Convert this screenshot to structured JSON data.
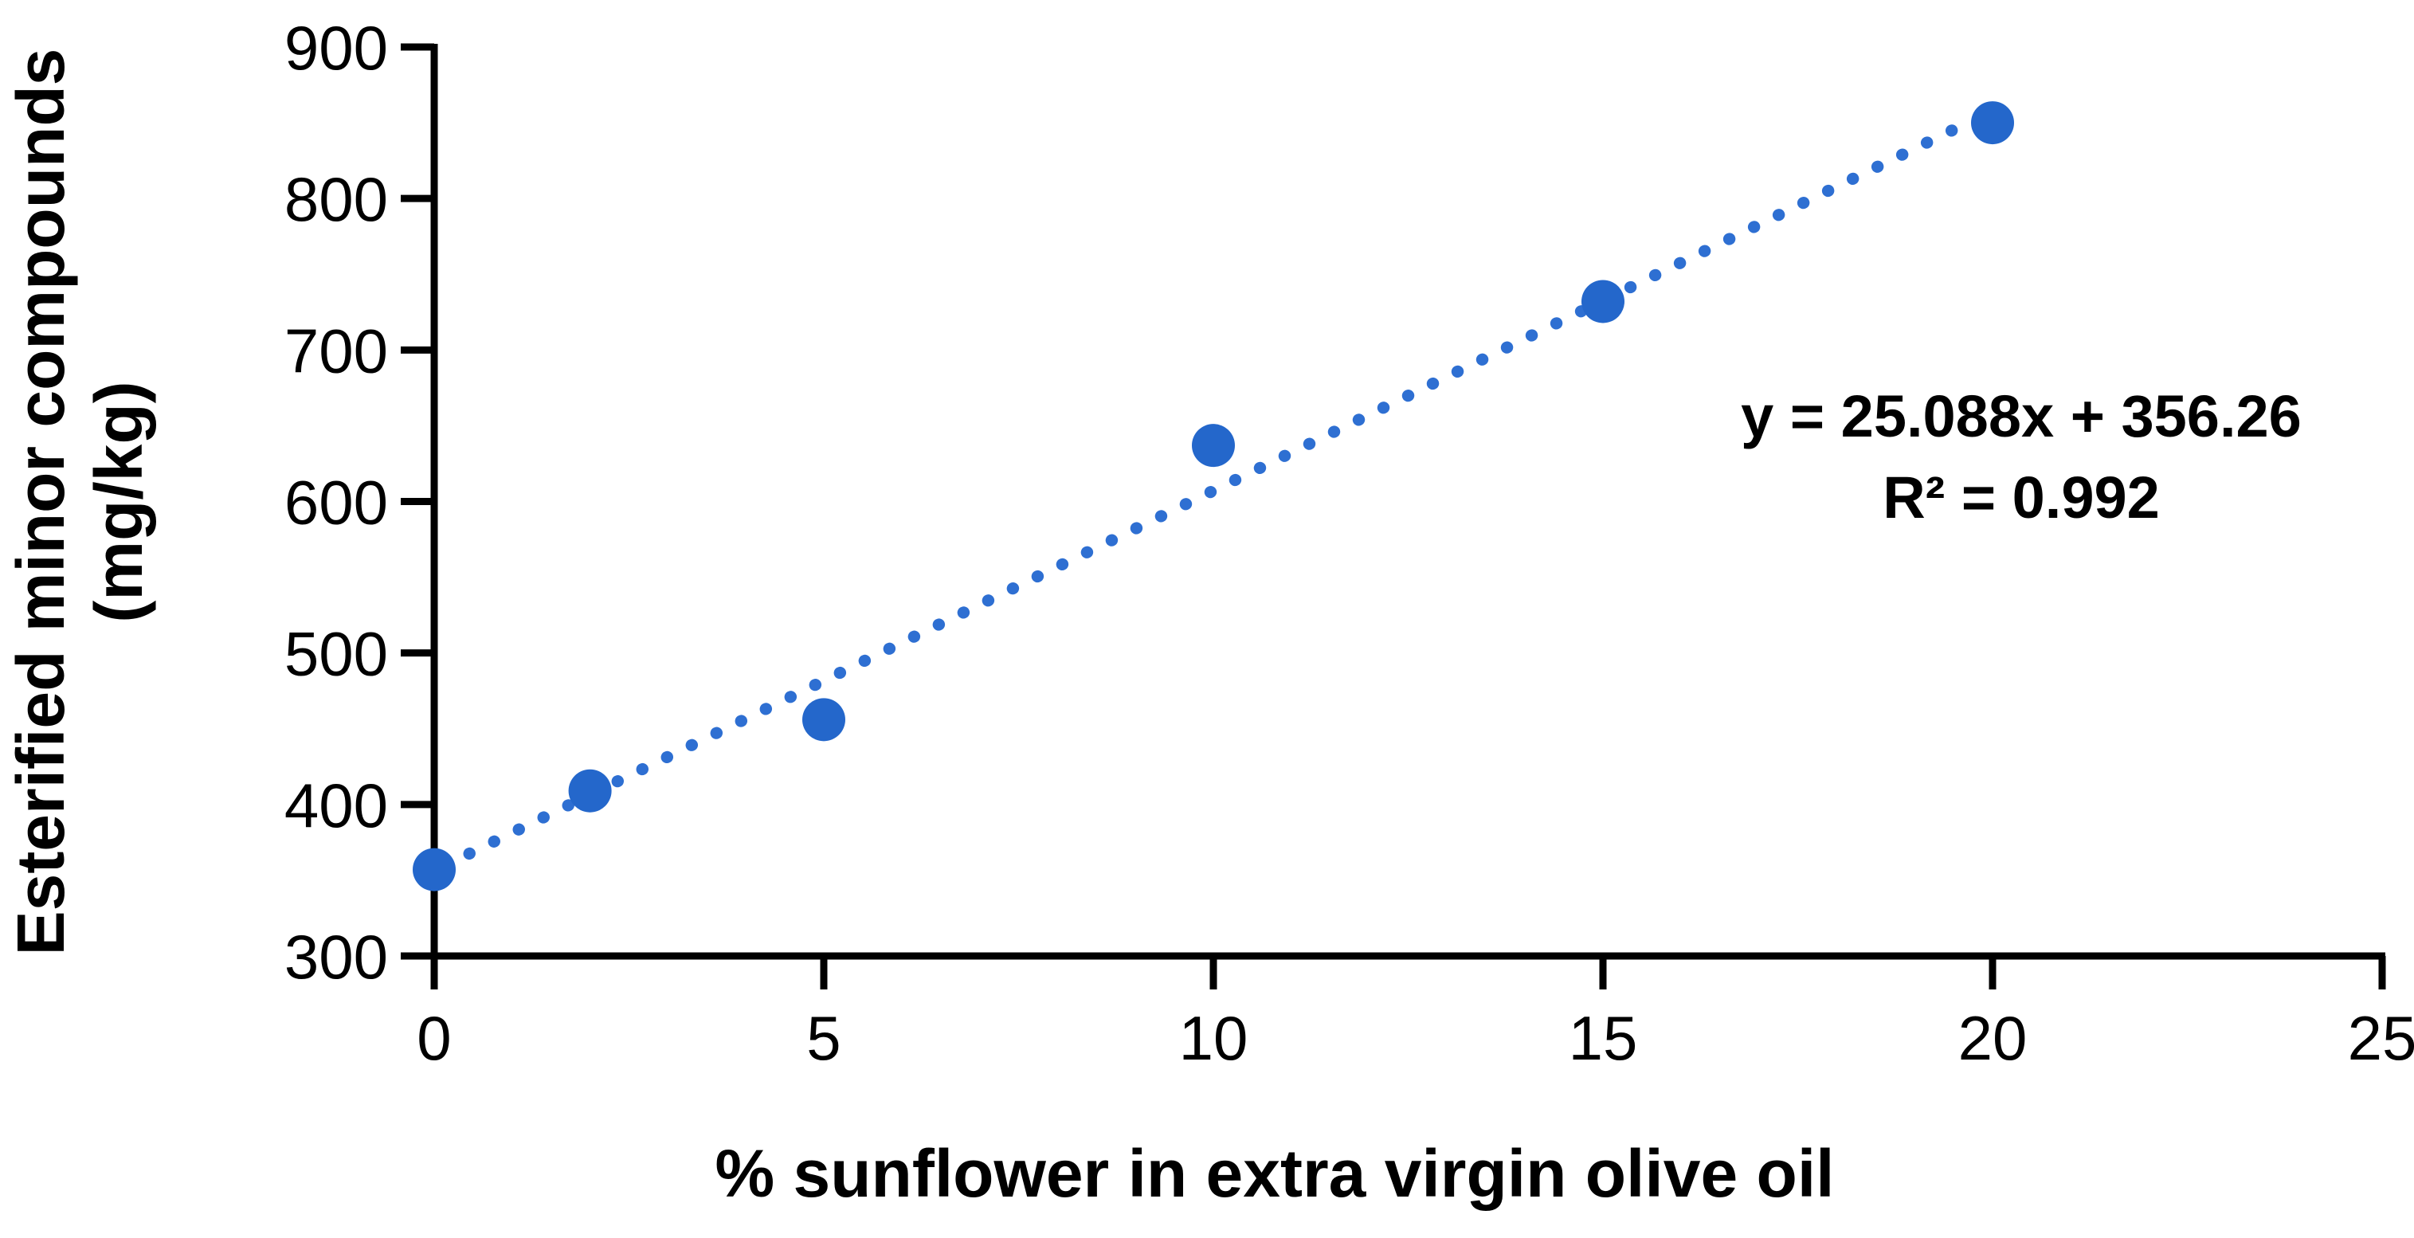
{
  "chart_data": {
    "type": "scatter",
    "xlabel": "% sunflower in extra virgin olive oil",
    "ylabel_line1": "Esterified minor compounds",
    "ylabel_line2": "(mg/kg)",
    "xlim": [
      0,
      25
    ],
    "ylim": [
      300,
      900
    ],
    "xticks": [
      "0",
      "5",
      "10",
      "15",
      "20",
      "25"
    ],
    "yticks": [
      "900",
      "800",
      "700",
      "600",
      "500",
      "400",
      "300"
    ],
    "grid": false,
    "legend_position": "none",
    "colors": {
      "marker": "#2467cb",
      "trendline": "#2e6fd2",
      "axis": "#000000",
      "text": "#000000",
      "background": "#ffffff"
    },
    "series": [
      {
        "name": "esterified-minor-compounds",
        "marker": "circle",
        "points": [
          {
            "x": 0,
            "y": 357
          },
          {
            "x": 2,
            "y": 409
          },
          {
            "x": 5,
            "y": 456
          },
          {
            "x": 10,
            "y": 637
          },
          {
            "x": 15,
            "y": 732
          },
          {
            "x": 20,
            "y": 850
          }
        ]
      }
    ],
    "trendline": {
      "style": "dotted",
      "slope": 25.088,
      "intercept": 356.26,
      "x_start": 0.45,
      "x_end": 19.6,
      "equation_label": "y = 25.088x + 356.26",
      "r_squared_label": "R² = 0.992"
    }
  }
}
